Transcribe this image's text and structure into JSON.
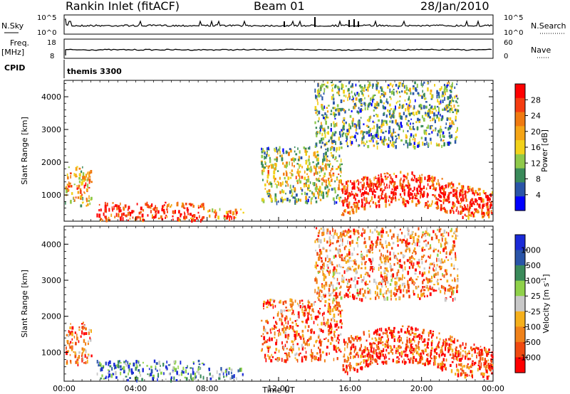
{
  "header": {
    "station": "Rankin Inlet (fitACF)",
    "beam": "Beam 01",
    "date": "28/Jan/2010"
  },
  "info_panels": {
    "nsky_label": "N.Sky",
    "nsky_ticks": [
      "10^5",
      "10^0"
    ],
    "nsearch_label": "N.Search",
    "nsearch_ticks": [
      "10^5",
      "10^0"
    ],
    "freq_label": "Freq.",
    "freq_unit": "[MHz]",
    "freq_ticks": [
      "18",
      "8"
    ],
    "nave_label": "Nave",
    "nave_ticks": [
      "60",
      "0"
    ],
    "cpid_label": "CPID",
    "cpid_value": "themis 3300"
  },
  "colors": {
    "power_scale": [
      "#0000ff",
      "#2a55a8",
      "#3a8a5a",
      "#8fc94a",
      "#f2d21a",
      "#f5a516",
      "#f07a10",
      "#f53c10",
      "#ff0000"
    ],
    "velocity_scale": [
      "#ff0000",
      "#f04a10",
      "#f0821a",
      "#f5b01c",
      "#c8c8c8",
      "#8fd14a",
      "#3a8a5a",
      "#2a55a8",
      "#1a2ad8"
    ]
  },
  "chart_data": [
    {
      "type": "heatmap",
      "title": "",
      "xlabel": "",
      "ylabel": "Slant Range [km]",
      "x_ticks": [
        "00:00",
        "04:00",
        "08:00",
        "12:00",
        "16:00",
        "20:00",
        "00:00"
      ],
      "y_ticks": [
        "1000",
        "2000",
        "3000",
        "4000"
      ],
      "ylim": [
        200,
        4500
      ],
      "xlim_hours": [
        0,
        24
      ],
      "colorbar": {
        "label": "Power [dB]",
        "ticks": [
          "4",
          "8",
          "12",
          "16",
          "20",
          "24",
          "28"
        ],
        "range": [
          0,
          30
        ]
      },
      "scatter_regions": [
        {
          "name": "early-echo",
          "t": [
            0.0,
            1.5
          ],
          "r": [
            700,
            1900
          ],
          "level": 0.55
        },
        {
          "name": "main-band",
          "t": [
            1.8,
            7.8
          ],
          "r": [
            250,
            800
          ],
          "level": 0.85
        },
        {
          "name": "dusk-band",
          "t": [
            8.0,
            10.0
          ],
          "r": [
            300,
            600
          ],
          "level": 0.7
        },
        {
          "name": "noon-patches",
          "t": [
            11.0,
            15.5
          ],
          "r": [
            800,
            2500
          ],
          "level": 0.45
        },
        {
          "name": "evening-band",
          "t": [
            15.5,
            24.0
          ],
          "r": [
            400,
            1800
          ],
          "level": 0.85
        },
        {
          "name": "high-range",
          "t": [
            14.0,
            22.0
          ],
          "r": [
            2500,
            4500
          ],
          "level": 0.35
        }
      ]
    },
    {
      "type": "heatmap",
      "title": "",
      "xlabel": "Time UT",
      "ylabel": "Slant Range [km]",
      "x_ticks": [
        "00:00",
        "04:00",
        "08:00",
        "12:00",
        "16:00",
        "20:00",
        "00:00"
      ],
      "y_ticks": [
        "1000",
        "2000",
        "3000",
        "4000"
      ],
      "ylim": [
        200,
        4500
      ],
      "xlim_hours": [
        0,
        24
      ],
      "colorbar": {
        "label": "Velocity [m s^-1]",
        "ticks": [
          "1000",
          "500",
          "100",
          "25",
          "-25",
          "-100",
          "-500",
          "-1000"
        ]
      },
      "scatter_regions": [
        {
          "name": "early-echo",
          "t": [
            0.0,
            1.5
          ],
          "r": [
            700,
            1900
          ],
          "level": 0.25
        },
        {
          "name": "main-band",
          "t": [
            1.8,
            7.8
          ],
          "r": [
            250,
            800
          ],
          "level": 0.75
        },
        {
          "name": "dusk-band",
          "t": [
            8.0,
            10.0
          ],
          "r": [
            300,
            600
          ],
          "level": 0.7
        },
        {
          "name": "noon-patches",
          "t": [
            11.0,
            15.5
          ],
          "r": [
            800,
            2500
          ],
          "level": 0.2
        },
        {
          "name": "evening-band",
          "t": [
            15.5,
            24.0
          ],
          "r": [
            400,
            1800
          ],
          "level": 0.15
        },
        {
          "name": "high-range",
          "t": [
            14.0,
            22.0
          ],
          "r": [
            2500,
            4500
          ],
          "level": 0.3
        }
      ]
    }
  ]
}
